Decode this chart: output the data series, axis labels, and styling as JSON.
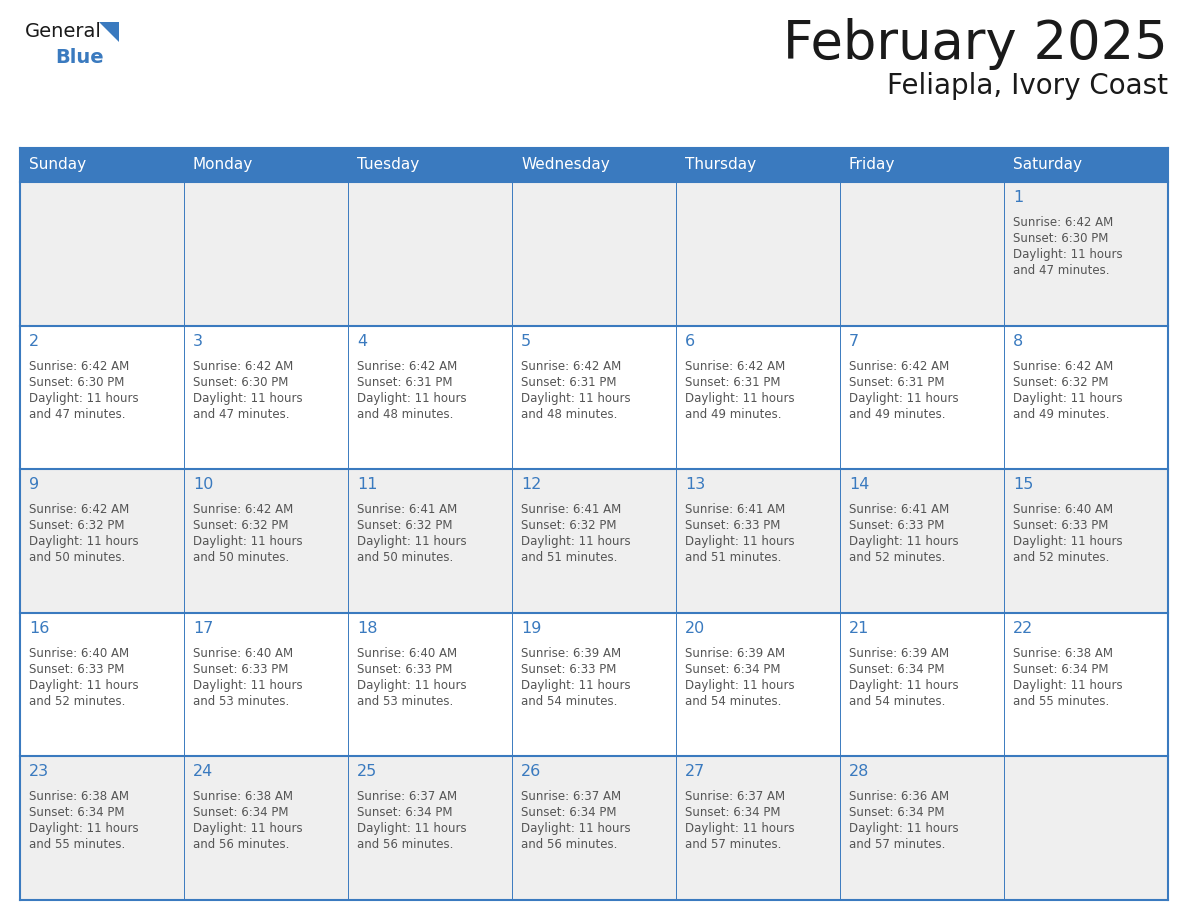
{
  "title": "February 2025",
  "subtitle": "Feliapla, Ivory Coast",
  "days_of_week": [
    "Sunday",
    "Monday",
    "Tuesday",
    "Wednesday",
    "Thursday",
    "Friday",
    "Saturday"
  ],
  "header_bg": "#3a7abf",
  "header_text": "#ffffff",
  "cell_bg_white": "#ffffff",
  "cell_bg_gray": "#efefef",
  "border_color": "#3a7abf",
  "day_num_color": "#3a7abf",
  "text_color": "#555555",
  "title_color": "#1a1a1a",
  "logo_general_color": "#1a1a1a",
  "logo_blue_color": "#3a7abf",
  "weeks": [
    [
      {
        "day": null,
        "sunrise": null,
        "sunset": null,
        "daylight": null
      },
      {
        "day": null,
        "sunrise": null,
        "sunset": null,
        "daylight": null
      },
      {
        "day": null,
        "sunrise": null,
        "sunset": null,
        "daylight": null
      },
      {
        "day": null,
        "sunrise": null,
        "sunset": null,
        "daylight": null
      },
      {
        "day": null,
        "sunrise": null,
        "sunset": null,
        "daylight": null
      },
      {
        "day": null,
        "sunrise": null,
        "sunset": null,
        "daylight": null
      },
      {
        "day": 1,
        "sunrise": "6:42 AM",
        "sunset": "6:30 PM",
        "daylight": "11 hours and 47 minutes."
      }
    ],
    [
      {
        "day": 2,
        "sunrise": "6:42 AM",
        "sunset": "6:30 PM",
        "daylight": "11 hours and 47 minutes."
      },
      {
        "day": 3,
        "sunrise": "6:42 AM",
        "sunset": "6:30 PM",
        "daylight": "11 hours and 47 minutes."
      },
      {
        "day": 4,
        "sunrise": "6:42 AM",
        "sunset": "6:31 PM",
        "daylight": "11 hours and 48 minutes."
      },
      {
        "day": 5,
        "sunrise": "6:42 AM",
        "sunset": "6:31 PM",
        "daylight": "11 hours and 48 minutes."
      },
      {
        "day": 6,
        "sunrise": "6:42 AM",
        "sunset": "6:31 PM",
        "daylight": "11 hours and 49 minutes."
      },
      {
        "day": 7,
        "sunrise": "6:42 AM",
        "sunset": "6:31 PM",
        "daylight": "11 hours and 49 minutes."
      },
      {
        "day": 8,
        "sunrise": "6:42 AM",
        "sunset": "6:32 PM",
        "daylight": "11 hours and 49 minutes."
      }
    ],
    [
      {
        "day": 9,
        "sunrise": "6:42 AM",
        "sunset": "6:32 PM",
        "daylight": "11 hours and 50 minutes."
      },
      {
        "day": 10,
        "sunrise": "6:42 AM",
        "sunset": "6:32 PM",
        "daylight": "11 hours and 50 minutes."
      },
      {
        "day": 11,
        "sunrise": "6:41 AM",
        "sunset": "6:32 PM",
        "daylight": "11 hours and 50 minutes."
      },
      {
        "day": 12,
        "sunrise": "6:41 AM",
        "sunset": "6:32 PM",
        "daylight": "11 hours and 51 minutes."
      },
      {
        "day": 13,
        "sunrise": "6:41 AM",
        "sunset": "6:33 PM",
        "daylight": "11 hours and 51 minutes."
      },
      {
        "day": 14,
        "sunrise": "6:41 AM",
        "sunset": "6:33 PM",
        "daylight": "11 hours and 52 minutes."
      },
      {
        "day": 15,
        "sunrise": "6:40 AM",
        "sunset": "6:33 PM",
        "daylight": "11 hours and 52 minutes."
      }
    ],
    [
      {
        "day": 16,
        "sunrise": "6:40 AM",
        "sunset": "6:33 PM",
        "daylight": "11 hours and 52 minutes."
      },
      {
        "day": 17,
        "sunrise": "6:40 AM",
        "sunset": "6:33 PM",
        "daylight": "11 hours and 53 minutes."
      },
      {
        "day": 18,
        "sunrise": "6:40 AM",
        "sunset": "6:33 PM",
        "daylight": "11 hours and 53 minutes."
      },
      {
        "day": 19,
        "sunrise": "6:39 AM",
        "sunset": "6:33 PM",
        "daylight": "11 hours and 54 minutes."
      },
      {
        "day": 20,
        "sunrise": "6:39 AM",
        "sunset": "6:34 PM",
        "daylight": "11 hours and 54 minutes."
      },
      {
        "day": 21,
        "sunrise": "6:39 AM",
        "sunset": "6:34 PM",
        "daylight": "11 hours and 54 minutes."
      },
      {
        "day": 22,
        "sunrise": "6:38 AM",
        "sunset": "6:34 PM",
        "daylight": "11 hours and 55 minutes."
      }
    ],
    [
      {
        "day": 23,
        "sunrise": "6:38 AM",
        "sunset": "6:34 PM",
        "daylight": "11 hours and 55 minutes."
      },
      {
        "day": 24,
        "sunrise": "6:38 AM",
        "sunset": "6:34 PM",
        "daylight": "11 hours and 56 minutes."
      },
      {
        "day": 25,
        "sunrise": "6:37 AM",
        "sunset": "6:34 PM",
        "daylight": "11 hours and 56 minutes."
      },
      {
        "day": 26,
        "sunrise": "6:37 AM",
        "sunset": "6:34 PM",
        "daylight": "11 hours and 56 minutes."
      },
      {
        "day": 27,
        "sunrise": "6:37 AM",
        "sunset": "6:34 PM",
        "daylight": "11 hours and 57 minutes."
      },
      {
        "day": 28,
        "sunrise": "6:36 AM",
        "sunset": "6:34 PM",
        "daylight": "11 hours and 57 minutes."
      },
      {
        "day": null,
        "sunrise": null,
        "sunset": null,
        "daylight": null
      }
    ]
  ]
}
